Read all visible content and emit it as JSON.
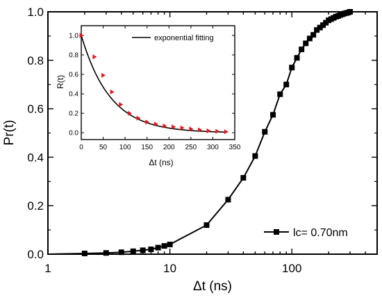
{
  "chart_data": [
    {
      "type": "line",
      "xlabel": "Δt (ns)",
      "ylabel": "Pr(t)",
      "xscale": "log",
      "xlim": [
        1,
        500
      ],
      "ylim": [
        0,
        1.0
      ],
      "x_ticks": [
        "1",
        "10",
        "100"
      ],
      "y_ticks": [
        "0.0",
        "0.2",
        "0.4",
        "0.6",
        "0.8",
        "1.0"
      ],
      "grid": false,
      "marker": "square",
      "color": "#000000",
      "legend_position": "bottom-right",
      "series": [
        {
          "name": "lc= 0.70nm",
          "x": [
            1,
            2,
            3,
            4,
            5,
            6,
            7,
            8,
            9,
            10,
            20,
            30,
            40,
            50,
            60,
            70,
            80,
            90,
            100,
            110,
            120,
            130,
            140,
            150,
            160,
            170,
            180,
            190,
            200,
            210,
            220,
            230,
            240,
            250,
            260,
            270,
            280,
            290,
            300,
            350,
            400,
            500
          ],
          "y": [
            0.0,
            0.003,
            0.005,
            0.008,
            0.012,
            0.016,
            0.02,
            0.027,
            0.034,
            0.04,
            0.12,
            0.225,
            0.315,
            0.405,
            0.505,
            0.575,
            0.66,
            0.7,
            0.77,
            0.81,
            0.845,
            0.87,
            0.89,
            0.905,
            0.925,
            0.935,
            0.945,
            0.955,
            0.965,
            0.97,
            0.975,
            0.98,
            0.983,
            0.987,
            0.99,
            0.993,
            0.995,
            0.997,
            1.0,
            1.0,
            1.0,
            1.0
          ]
        }
      ]
    },
    {
      "type": "scatter",
      "xlabel": "Δt (ns)",
      "ylabel": "R(t)",
      "xlim": [
        0,
        350
      ],
      "ylim": [
        -0.07,
        1.1
      ],
      "x_ticks": [
        "0",
        "50",
        "100",
        "150",
        "200",
        "250",
        "300",
        "350"
      ],
      "y_ticks": [
        "0.0",
        "0.2",
        "0.4",
        "0.6",
        "0.8",
        "1.0"
      ],
      "grid": false,
      "legend_position": "top-right",
      "marker_color": "#e8141c",
      "fit_color": "#000000",
      "fit_tau_ns": 66,
      "series": [
        {
          "name": "",
          "x": [
            0,
            30,
            50,
            70,
            90,
            110,
            130,
            150,
            170,
            190,
            210,
            230,
            250,
            270,
            290,
            310,
            330
          ],
          "y": [
            1.0,
            0.78,
            0.59,
            0.42,
            0.29,
            0.2,
            0.15,
            0.11,
            0.09,
            0.07,
            0.06,
            0.05,
            0.04,
            0.03,
            0.02,
            0.015,
            0.01
          ]
        }
      ],
      "fit_label": "exponential fitting"
    }
  ]
}
